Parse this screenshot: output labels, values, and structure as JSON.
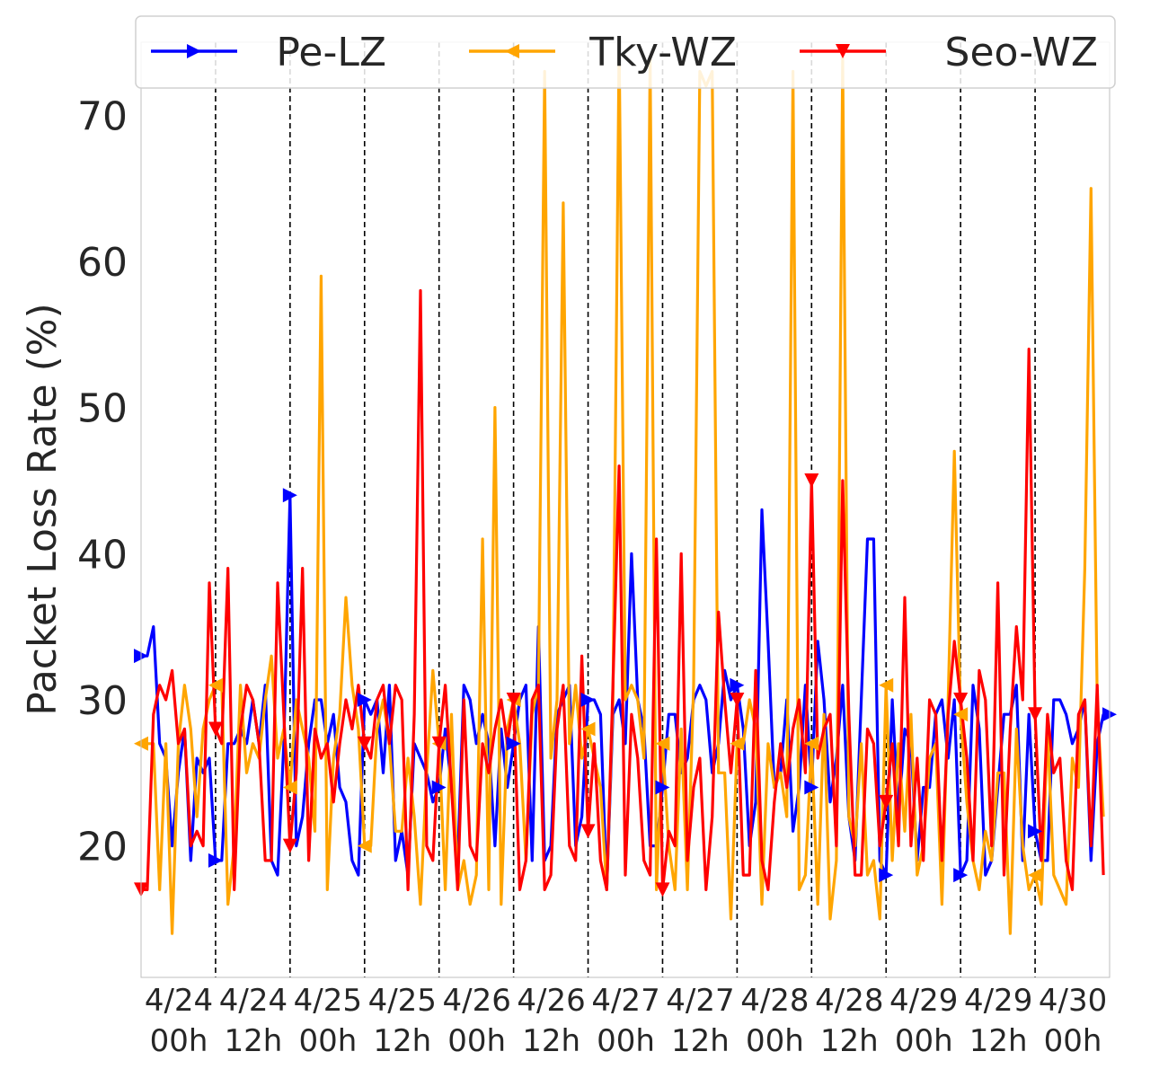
{
  "chart_data": {
    "type": "line",
    "title": "",
    "xlabel": "",
    "ylabel": "Packet Loss Rate (%)",
    "ylim": [
      11,
      75
    ],
    "yticks": [
      20,
      30,
      40,
      50,
      60,
      70
    ],
    "xlim": [
      0,
      156
    ],
    "x_tick_labels": [
      [
        "4/24",
        "00h"
      ],
      [
        "4/24",
        "12h"
      ],
      [
        "4/25",
        "00h"
      ],
      [
        "4/25",
        "12h"
      ],
      [
        "4/26",
        "00h"
      ],
      [
        "4/26",
        "12h"
      ],
      [
        "4/27",
        "00h"
      ],
      [
        "4/27",
        "12h"
      ],
      [
        "4/28",
        "00h"
      ],
      [
        "4/28",
        "12h"
      ],
      [
        "4/29",
        "00h"
      ],
      [
        "4/29",
        "12h"
      ],
      [
        "4/30",
        "00h"
      ]
    ],
    "x_tick_hours": [
      0,
      12,
      24,
      36,
      48,
      60,
      72,
      84,
      96,
      108,
      120,
      132,
      144
    ],
    "vlines_hours": [
      12,
      24,
      36,
      48,
      60,
      72,
      84,
      96,
      108,
      120,
      132,
      144
    ],
    "grid": "vertical dashed",
    "legend_position": "top",
    "series": [
      {
        "name": "Pe-LZ",
        "color": "#0000ff",
        "marker": "triangle-right",
        "marker_every": 12,
        "values": [
          33,
          33,
          35,
          27,
          26,
          20,
          25,
          28,
          19,
          26,
          25,
          26,
          19,
          19,
          27,
          27,
          28,
          27,
          30,
          27,
          31,
          19,
          18,
          27,
          44,
          20,
          22,
          27,
          30,
          30,
          27,
          29,
          24,
          23,
          19,
          18,
          30,
          29,
          30,
          25,
          31,
          19,
          21,
          18,
          27,
          26,
          25,
          23,
          24,
          28,
          24,
          19,
          31,
          30,
          27,
          29,
          27,
          20,
          28,
          24,
          27,
          30,
          31,
          19,
          35,
          19,
          20,
          29,
          30,
          31,
          20,
          22,
          30,
          30,
          29,
          17,
          29,
          30,
          27,
          40,
          30,
          28,
          20,
          20,
          24,
          29,
          29,
          25,
          26,
          30,
          31,
          30,
          25,
          27,
          32,
          30,
          31,
          28,
          20,
          23,
          43,
          34,
          24,
          25,
          30,
          21,
          24,
          31,
          24,
          34,
          30,
          23,
          26,
          31,
          22,
          19,
          30,
          41,
          41,
          19,
          18,
          30,
          22,
          28,
          27,
          19,
          24,
          24,
          29,
          30,
          26,
          30,
          18,
          19,
          31,
          28,
          18,
          19,
          24,
          29,
          29,
          31,
          19,
          29,
          21,
          19,
          19,
          30,
          30,
          29,
          27,
          28,
          30,
          19,
          27,
          29,
          29
        ]
      },
      {
        "name": "Tky-WZ",
        "color": "#ffa500",
        "marker": "triangle-left",
        "marker_every": 12,
        "values": [
          27,
          27,
          27,
          17,
          27,
          14,
          27,
          31,
          28,
          22,
          28,
          30,
          31,
          31,
          16,
          20,
          31,
          25,
          27,
          26,
          30,
          33,
          26,
          28,
          24,
          30,
          28,
          26,
          21,
          59,
          17,
          26,
          29,
          37,
          31,
          28,
          20,
          20,
          28,
          30,
          27,
          21,
          21,
          26,
          22,
          16,
          25,
          32,
          27,
          17,
          29,
          17,
          19,
          16,
          18,
          41,
          17,
          50,
          16,
          28,
          30,
          27,
          19,
          29,
          31,
          73,
          26,
          30,
          64,
          27,
          31,
          26,
          28,
          26,
          24,
          17,
          30,
          75,
          30,
          31,
          30,
          26,
          74,
          17,
          27,
          20,
          17,
          28,
          17,
          31,
          73,
          72,
          73,
          25,
          25,
          15,
          27,
          27,
          30,
          28,
          16,
          27,
          24,
          25,
          22,
          73,
          17,
          18,
          27,
          16,
          29,
          15,
          19,
          74,
          22,
          20,
          27,
          18,
          19,
          15,
          31,
          19,
          27,
          21,
          29,
          18,
          20,
          26,
          27,
          16,
          30,
          47,
          29,
          23,
          19,
          17,
          21,
          19,
          25,
          25,
          14,
          28,
          20,
          17,
          18,
          16,
          28,
          18,
          17,
          16,
          26,
          24,
          39,
          65,
          30,
          22
        ]
      },
      {
        "name": "Seo-WZ",
        "color": "#ff0000",
        "marker": "triangle-down",
        "marker_every": 12,
        "values": [
          17,
          17,
          29,
          31,
          30,
          32,
          27,
          28,
          20,
          21,
          20,
          38,
          28,
          27,
          39,
          17,
          28,
          31,
          30,
          27,
          19,
          19,
          38,
          29,
          20,
          25,
          39,
          19,
          28,
          26,
          27,
          23,
          27,
          30,
          28,
          31,
          27,
          26,
          30,
          31,
          27,
          31,
          30,
          17,
          29,
          58,
          20,
          19,
          27,
          31,
          24,
          17,
          30,
          20,
          19,
          27,
          25,
          28,
          30,
          27,
          30,
          17,
          19,
          30,
          31,
          17,
          18,
          28,
          31,
          20,
          19,
          33,
          21,
          27,
          19,
          17,
          31,
          46,
          18,
          29,
          26,
          19,
          18,
          41,
          17,
          21,
          20,
          40,
          19,
          24,
          26,
          17,
          22,
          36,
          30,
          25,
          30,
          18,
          18,
          32,
          19,
          17,
          23,
          27,
          24,
          28,
          30,
          25,
          45,
          26,
          28,
          29,
          20,
          45,
          29,
          18,
          18,
          28,
          27,
          20,
          23,
          27,
          20,
          37,
          20,
          26,
          19,
          30,
          29,
          19,
          29,
          34,
          30,
          26,
          19,
          32,
          30,
          20,
          38,
          18,
          28,
          35,
          30,
          54,
          29,
          19,
          29,
          25,
          26,
          19,
          17,
          29,
          30,
          20,
          31,
          18
        ]
      }
    ]
  }
}
